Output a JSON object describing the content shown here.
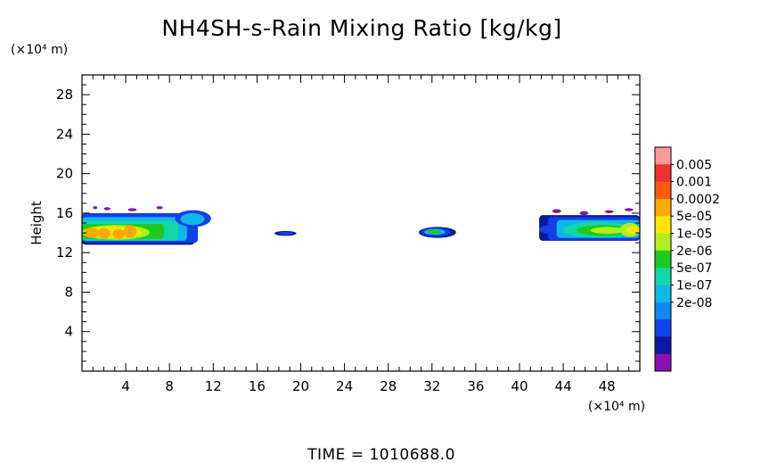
{
  "chart_data": {
    "type": "heatmap",
    "title": "NH4SH-s-Rain Mixing Ratio [kg/kg]",
    "ylabel": "Height",
    "x_unit_label": "(×10⁴ m)",
    "y_unit_label": "(×10⁴ m)",
    "xlim": [
      0,
      51
    ],
    "ylim": [
      0,
      30
    ],
    "x_ticks": [
      4,
      8,
      12,
      16,
      20,
      24,
      28,
      32,
      36,
      40,
      44,
      48
    ],
    "y_ticks": [
      4,
      8,
      12,
      16,
      20,
      24,
      28
    ],
    "colorbar": {
      "labels": [
        "0.005",
        "0.001",
        "0.0002",
        "5e-05",
        "1e-05",
        "2e-06",
        "5e-07",
        "1e-07",
        "2e-08"
      ],
      "colors": [
        "#ff9a9a",
        "#f03030",
        "#ff5a10",
        "#ffaa00",
        "#ffe600",
        "#b0ee20",
        "#20c820",
        "#10d8a8",
        "#10b8e8",
        "#1088f0",
        "#1040e8",
        "#0a1aa0",
        "#8a10b0"
      ]
    },
    "regions": [
      {
        "name": "left-cloud",
        "x_range": [
          0,
          11.8
        ],
        "y_range": [
          12.8,
          16.3
        ],
        "peak": "0.0002"
      },
      {
        "name": "small-blob-18",
        "x_range": [
          17.6,
          19.6
        ],
        "y_range": [
          13.7,
          14.2
        ],
        "peak": "1e-07"
      },
      {
        "name": "blob-32",
        "x_range": [
          30.8,
          34.2
        ],
        "y_range": [
          13.5,
          14.6
        ],
        "peak": "1e-05"
      },
      {
        "name": "right-cloud",
        "x_range": [
          41.8,
          51
        ],
        "y_range": [
          13.2,
          16.2
        ],
        "peak": "5e-05"
      }
    ],
    "time_label": "TIME",
    "time_value": "1010688.0"
  },
  "footer": {
    "time_text": "TIME = 1010688.0"
  }
}
